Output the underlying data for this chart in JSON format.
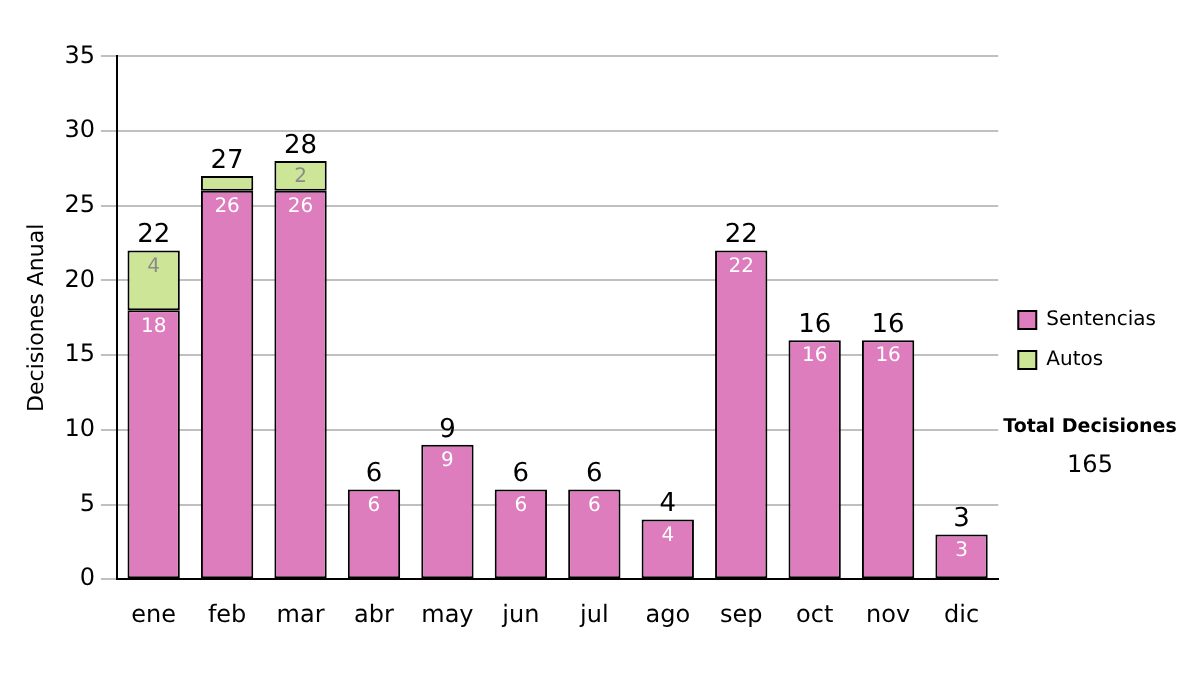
{
  "chart_data": {
    "type": "bar",
    "stacked": true,
    "ylabel": "Decisiones Anual",
    "categories": [
      "ene",
      "feb",
      "mar",
      "abr",
      "may",
      "jun",
      "jul",
      "ago",
      "sep",
      "oct",
      "nov",
      "dic"
    ],
    "series": [
      {
        "name": "Sentencias",
        "color": "#dd7dbd",
        "values": [
          18,
          26,
          26,
          6,
          9,
          6,
          6,
          4,
          22,
          16,
          16,
          3
        ],
        "value_labels": [
          "18",
          "26",
          "26",
          "6",
          "9",
          "6",
          "6",
          "4",
          "22",
          "16",
          "16",
          "3"
        ]
      },
      {
        "name": "Autos",
        "color": "#cde596",
        "values": [
          4,
          1,
          2,
          null,
          null,
          null,
          null,
          null,
          null,
          null,
          null,
          null
        ],
        "value_labels": [
          "4",
          null,
          "2",
          null,
          null,
          null,
          null,
          null,
          null,
          null,
          null,
          null
        ]
      }
    ],
    "totals": [
      "22",
      "27",
      "28",
      "6",
      "9",
      "6",
      "6",
      "4",
      "22",
      "16",
      "16",
      "3"
    ],
    "ylim": [
      0,
      35
    ],
    "yticks": [
      0,
      5,
      10,
      15,
      20,
      25,
      30,
      35
    ],
    "grid": "y",
    "legend": "right",
    "annotations": [
      "Total Decisiones",
      "165"
    ]
  }
}
